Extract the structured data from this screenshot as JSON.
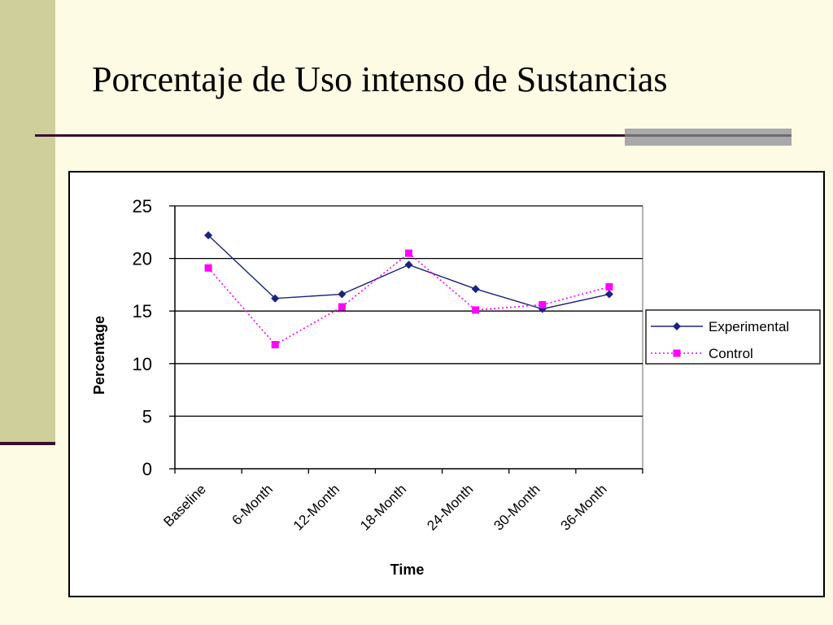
{
  "slide": {
    "title": "Porcentaje de Uso intenso de Sustancias"
  },
  "colors": {
    "background": "#fdfbe3",
    "left_band": "#cfcf9c",
    "rule": "#3a0d2c",
    "rule_accent": "#a9a9ab",
    "experimental": "#1a237e",
    "control": "#ff00ff"
  },
  "chart_data": {
    "type": "line",
    "title": "",
    "xlabel": "Time",
    "ylabel": "Percentage",
    "ylim": [
      0,
      25
    ],
    "yticks": [
      0,
      5,
      10,
      15,
      20,
      25
    ],
    "grid": "horizontal",
    "legend_position": "right",
    "categories": [
      "Baseline",
      "6-Month",
      "12-Month",
      "18-Month",
      "24-Month",
      "30-Month",
      "36-Month"
    ],
    "series": [
      {
        "name": "Experimental",
        "values": [
          22.2,
          16.2,
          16.6,
          19.4,
          17.1,
          15.2,
          16.6
        ],
        "color": "#1a237e",
        "marker": "diamond",
        "line_style": "solid"
      },
      {
        "name": "Control",
        "values": [
          19.1,
          11.8,
          15.4,
          20.5,
          15.1,
          15.6,
          17.3
        ],
        "color": "#ff00ff",
        "marker": "square",
        "line_style": "dotted"
      }
    ]
  }
}
